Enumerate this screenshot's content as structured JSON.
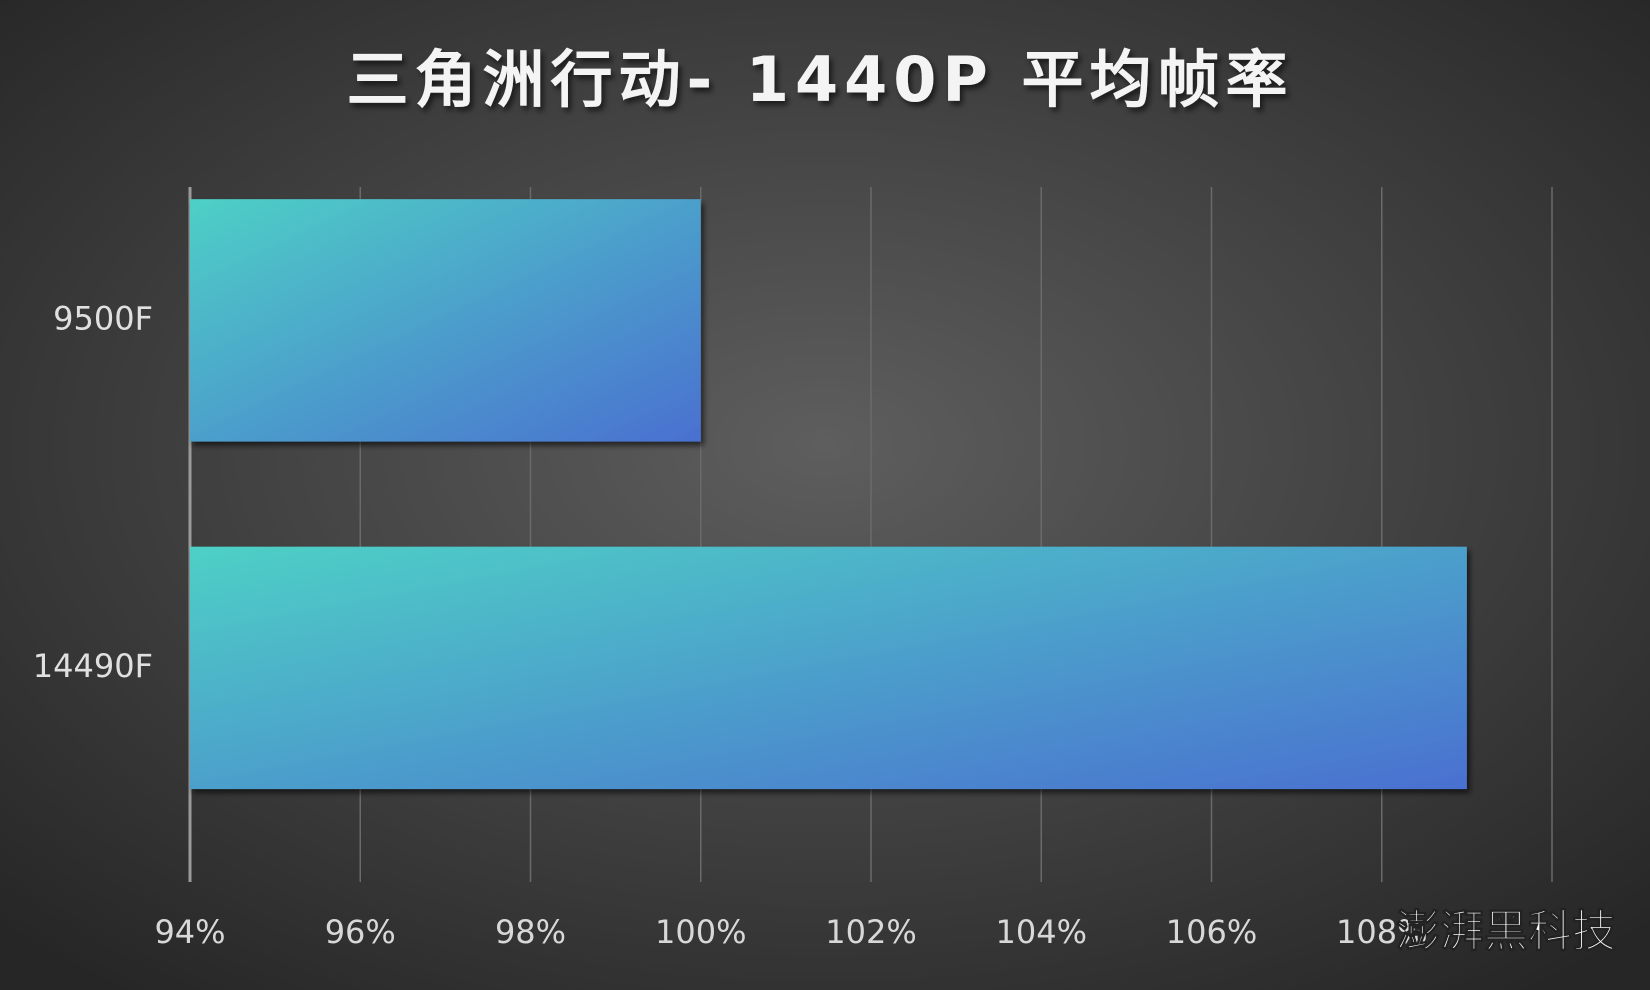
{
  "chart_data": {
    "type": "barh",
    "title": "三角洲行动- 1440P 平均帧率",
    "categories": [
      "9500F",
      "14490F"
    ],
    "values": [
      100,
      109
    ],
    "colors": [
      "#4ed0c6",
      "#4a70d0"
    ],
    "xlim": [
      94,
      110
    ],
    "xticks": [
      {
        "value": 94,
        "label": "94%"
      },
      {
        "value": 96,
        "label": "96%"
      },
      {
        "value": 98,
        "label": "98%"
      },
      {
        "value": 100,
        "label": "100%"
      },
      {
        "value": 102,
        "label": "102%"
      },
      {
        "value": 104,
        "label": "104%"
      },
      {
        "value": 106,
        "label": "106%"
      },
      {
        "value": 108,
        "label": "108%"
      }
    ],
    "grid": true,
    "watermark": "澎湃黑科技"
  }
}
